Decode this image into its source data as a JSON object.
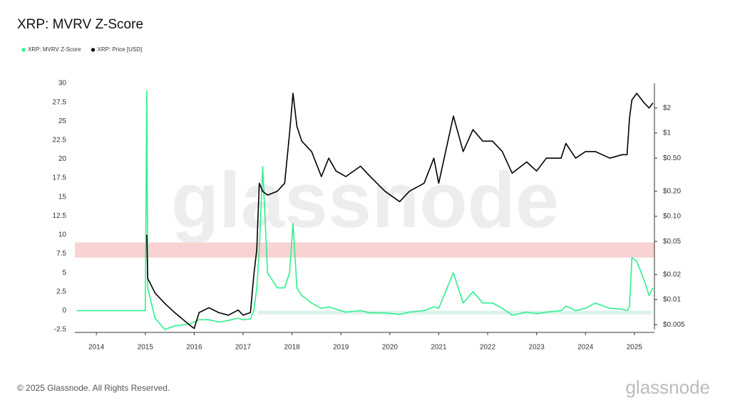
{
  "chart_data": {
    "type": "line",
    "title": "XRP: MVRV Z-Score",
    "watermark": "glassnode",
    "footer": "© 2025 Glassnode. All Rights Reserved.",
    "brand": "glassnode",
    "x": [
      2013.6,
      2014.5,
      2015.0,
      2015.03,
      2015.05,
      2015.2,
      2015.4,
      2015.6,
      2015.9,
      2016.0,
      2016.1,
      2016.3,
      2016.5,
      2016.7,
      2016.9,
      2017.0,
      2017.15,
      2017.22,
      2017.28,
      2017.33,
      2017.4,
      2017.5,
      2017.7,
      2017.85,
      2017.95,
      2018.02,
      2018.1,
      2018.2,
      2018.4,
      2018.6,
      2018.75,
      2018.9,
      2019.1,
      2019.4,
      2019.6,
      2019.9,
      2020.2,
      2020.4,
      2020.7,
      2020.9,
      2021.0,
      2021.3,
      2021.5,
      2021.7,
      2021.9,
      2022.1,
      2022.3,
      2022.5,
      2022.8,
      2023.0,
      2023.2,
      2023.5,
      2023.6,
      2023.8,
      2024.0,
      2024.2,
      2024.5,
      2024.75,
      2024.85,
      2024.9,
      2024.95,
      2025.05,
      2025.2,
      2025.3,
      2025.38
    ],
    "series": [
      {
        "name": "XRP: MVRV Z-Score",
        "color": "#2ef08d",
        "axis": "y",
        "values": [
          0,
          0,
          0,
          29,
          3,
          -1,
          -2.5,
          -2,
          -1.8,
          -1.5,
          -1.2,
          -1.2,
          -1.5,
          -1.3,
          -1,
          -1.2,
          -1.1,
          0,
          3,
          8,
          19,
          5,
          3,
          3,
          5,
          11.5,
          3,
          2,
          1,
          0.3,
          0.5,
          0.2,
          -0.2,
          0,
          -0.3,
          -0.3,
          -0.5,
          -0.2,
          0,
          0.5,
          0.3,
          5,
          1,
          2.5,
          1,
          1,
          0.3,
          -0.6,
          -0.2,
          -0.4,
          -0.2,
          0,
          0.6,
          0,
          0.3,
          1,
          0.3,
          0.2,
          0,
          0.5,
          7,
          6.5,
          4,
          2,
          3
        ]
      },
      {
        "name": "XRP: Price [USD]",
        "color": "#000000",
        "axis": "y2",
        "values": [
          null,
          null,
          null,
          0.06,
          0.018,
          0.012,
          0.009,
          0.007,
          0.005,
          0.0045,
          0.007,
          0.008,
          0.007,
          0.0065,
          0.0075,
          0.0065,
          0.007,
          0.02,
          0.04,
          0.25,
          0.2,
          0.18,
          0.2,
          0.25,
          1.0,
          3.0,
          1.2,
          0.8,
          0.6,
          0.3,
          0.5,
          0.35,
          0.3,
          0.4,
          0.3,
          0.2,
          0.15,
          0.2,
          0.25,
          0.5,
          0.25,
          1.6,
          0.6,
          1.1,
          0.8,
          0.8,
          0.6,
          0.33,
          0.45,
          0.35,
          0.5,
          0.5,
          0.75,
          0.5,
          0.6,
          0.6,
          0.5,
          0.55,
          0.55,
          1.5,
          2.5,
          3.0,
          2.3,
          2.0,
          2.3
        ]
      }
    ],
    "xlim": [
      2013.56,
      2025.41
    ],
    "xticks": [
      2014,
      2015,
      2016,
      2017,
      2018,
      2019,
      2020,
      2021,
      2022,
      2023,
      2024,
      2025
    ],
    "ylim": [
      -2.5,
      30
    ],
    "yticks": [
      -2.5,
      0,
      2.5,
      5,
      7.5,
      10,
      12.5,
      15,
      17.5,
      20,
      22.5,
      25,
      27.5,
      30
    ],
    "y2log": true,
    "y2lim": [
      0.00437,
      3.96
    ],
    "y2ticks": [
      {
        "value": 0.005,
        "label": "$0.005"
      },
      {
        "value": 0.01,
        "label": "$0.01"
      },
      {
        "value": 0.02,
        "label": "$0.02"
      },
      {
        "value": 0.05,
        "label": "$0.05"
      },
      {
        "value": 0.1,
        "label": "$0.10"
      },
      {
        "value": 0.2,
        "label": "$0.20"
      },
      {
        "value": 0.5,
        "label": "$0.50"
      },
      {
        "value": 1,
        "label": "$1"
      },
      {
        "value": 2,
        "label": "$2"
      }
    ],
    "bands": [
      {
        "from": 7,
        "to": 9,
        "color": "#f9d3d3"
      },
      {
        "from": -0.5,
        "to": 0,
        "color": "#dcf3ea",
        "xfrom": 2017.3,
        "xto": 2025.35
      }
    ],
    "grid": false
  }
}
